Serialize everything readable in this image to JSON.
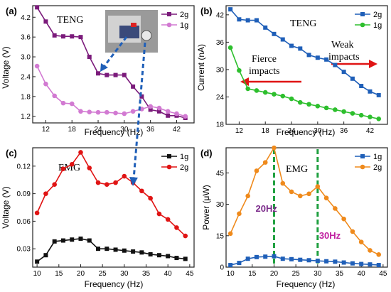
{
  "chart_data": [
    {
      "panel_label": "(a)",
      "type": "line",
      "inset_text": "TENG",
      "xlabel": "Frequency (Hz)",
      "ylabel": "Voltage (V)",
      "xlim": [
        9,
        46
      ],
      "ylim": [
        1.0,
        4.55
      ],
      "xticks": [
        12,
        18,
        24,
        30,
        36,
        42
      ],
      "yticks": [
        1.2,
        1.8,
        2.4,
        3.0,
        3.6,
        4.2
      ],
      "ytick_labels": [
        "1.2",
        "1.8",
        "2.4",
        "3.0",
        "3.6",
        "4.2"
      ],
      "legend_position": "top-right",
      "series": [
        {
          "name": "2g",
          "color": "#7b1b7b",
          "marker": "square",
          "x": [
            10,
            12,
            14,
            16,
            18,
            20,
            22,
            24,
            26,
            28,
            30,
            32,
            34,
            36,
            38,
            40,
            42,
            44
          ],
          "y": [
            4.5,
            4.07,
            3.65,
            3.62,
            3.62,
            3.6,
            3.0,
            2.5,
            2.45,
            2.45,
            2.45,
            2.1,
            1.8,
            1.4,
            1.35,
            1.22,
            1.22,
            1.15
          ]
        },
        {
          "name": "1g",
          "color": "#d27ad2",
          "marker": "circle",
          "x": [
            10,
            12,
            14,
            16,
            18,
            20,
            22,
            24,
            26,
            28,
            30,
            32,
            34,
            36,
            38,
            40,
            42,
            44
          ],
          "y": [
            2.72,
            2.18,
            1.82,
            1.6,
            1.58,
            1.35,
            1.33,
            1.32,
            1.32,
            1.3,
            1.28,
            1.35,
            1.42,
            1.5,
            1.45,
            1.35,
            1.28,
            1.2
          ]
        }
      ]
    },
    {
      "panel_label": "(b)",
      "type": "line",
      "inset_text": "TENG",
      "xlabel": "Frequency (Hz)",
      "ylabel": "Current (nA)",
      "xlim": [
        9,
        46
      ],
      "ylim": [
        18,
        44
      ],
      "xticks": [
        12,
        18,
        24,
        30,
        36,
        42
      ],
      "yticks": [
        18,
        24,
        30,
        36,
        42
      ],
      "ytick_labels": [
        "18",
        "24",
        "30",
        "36",
        "42"
      ],
      "legend_position": "top-right",
      "annotations": {
        "left": [
          "Fierce",
          "impacts"
        ],
        "right": [
          "Weak",
          "impacts"
        ]
      },
      "series": [
        {
          "name": "2g",
          "color": "#1f5fb8",
          "marker": "square",
          "x": [
            10,
            12,
            14,
            16,
            18,
            20,
            22,
            24,
            26,
            28,
            30,
            32,
            34,
            36,
            38,
            40,
            42,
            44
          ],
          "y": [
            43.2,
            41.0,
            40.8,
            40.8,
            39.2,
            37.8,
            36.6,
            35.2,
            34.6,
            33.2,
            32.6,
            32.2,
            31.0,
            29.5,
            28.0,
            26.4,
            25.2,
            24.4
          ]
        },
        {
          "name": "1g",
          "color": "#2dbf2d",
          "marker": "circle",
          "x": [
            10,
            12,
            14,
            16,
            18,
            20,
            22,
            24,
            26,
            28,
            30,
            32,
            34,
            36,
            38,
            40,
            42,
            44
          ],
          "y": [
            34.8,
            29.8,
            25.8,
            25.4,
            25.0,
            24.6,
            24.2,
            23.6,
            22.8,
            22.4,
            22.0,
            21.6,
            21.2,
            20.8,
            20.4,
            20.0,
            19.6,
            19.2
          ]
        }
      ]
    },
    {
      "panel_label": "(c)",
      "type": "line",
      "inset_text": "EMG",
      "xlabel": "Frequency (Hz)",
      "ylabel": "Voltage (V)",
      "xlim": [
        9,
        46
      ],
      "ylim": [
        0.01,
        0.14
      ],
      "xticks": [
        10,
        15,
        20,
        25,
        30,
        35,
        40,
        45
      ],
      "yticks": [
        0.03,
        0.06,
        0.09,
        0.12
      ],
      "ytick_labels": [
        "0.03",
        "0.06",
        "0.09",
        "0.12"
      ],
      "legend_position": "top-right",
      "series": [
        {
          "name": "1g",
          "color": "#111111",
          "marker": "square",
          "x": [
            10,
            12,
            14,
            16,
            18,
            20,
            22,
            24,
            26,
            28,
            30,
            32,
            34,
            36,
            38,
            40,
            42,
            44
          ],
          "y": [
            0.016,
            0.023,
            0.038,
            0.039,
            0.04,
            0.041,
            0.039,
            0.03,
            0.03,
            0.029,
            0.028,
            0.027,
            0.026,
            0.024,
            0.023,
            0.022,
            0.02,
            0.019
          ]
        },
        {
          "name": "2g",
          "color": "#e01414",
          "marker": "circle",
          "x": [
            10,
            12,
            14,
            16,
            18,
            20,
            22,
            24,
            26,
            28,
            30,
            32,
            34,
            36,
            38,
            40,
            42,
            44
          ],
          "y": [
            0.069,
            0.09,
            0.1,
            0.117,
            0.122,
            0.135,
            0.118,
            0.102,
            0.1,
            0.102,
            0.109,
            0.102,
            0.093,
            0.085,
            0.068,
            0.062,
            0.053,
            0.044
          ]
        }
      ]
    },
    {
      "panel_label": "(d)",
      "type": "line",
      "inset_text": "EMG",
      "xlabel": "Frequency (Hz)",
      "ylabel": "Power (μW)",
      "xlim": [
        9,
        46
      ],
      "ylim": [
        0,
        57
      ],
      "xticks": [
        10,
        15,
        20,
        25,
        30,
        35,
        40,
        45
      ],
      "yticks": [
        0,
        15,
        30,
        45
      ],
      "ytick_labels": [
        "0",
        "15",
        "30",
        "45"
      ],
      "legend_position": "top-right",
      "markers": [
        {
          "x": 20,
          "label": "20Hz",
          "color": "#7b2a8a"
        },
        {
          "x": 30,
          "label": "30Hz",
          "color": "#c020a0"
        }
      ],
      "series": [
        {
          "name": "1g",
          "color": "#1f5fb8",
          "marker": "square",
          "x": [
            10,
            12,
            14,
            16,
            18,
            20,
            22,
            24,
            26,
            28,
            30,
            32,
            34,
            36,
            38,
            40,
            42,
            44
          ],
          "y": [
            1.0,
            2.0,
            4.0,
            4.8,
            5.0,
            5.2,
            4.0,
            3.8,
            3.5,
            3.3,
            3.0,
            2.8,
            2.6,
            2.2,
            1.8,
            1.5,
            1.3,
            1.0
          ]
        },
        {
          "name": "2g",
          "color": "#ef8a1c",
          "marker": "circle",
          "x": [
            10,
            12,
            14,
            16,
            18,
            20,
            22,
            24,
            26,
            28,
            30,
            32,
            34,
            36,
            38,
            40,
            42,
            44
          ],
          "y": [
            16.0,
            25.5,
            34.0,
            46.0,
            50.0,
            57.0,
            40.0,
            36.0,
            34.0,
            35.0,
            38.5,
            33.0,
            28.0,
            23.0,
            17.0,
            12.0,
            8.0,
            6.0
          ]
        }
      ]
    }
  ]
}
